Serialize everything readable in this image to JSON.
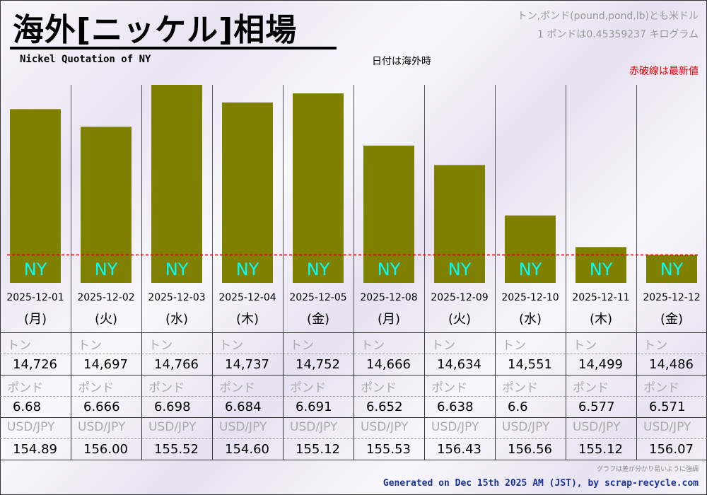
{
  "header": {
    "title": "海外[ニッケル]相場",
    "subtitle": "Nickel Quotation of NY",
    "date_note": "日付は海外時",
    "unit_note_1": "トン,ポンド(pound,pond,lb)とも米ドル",
    "unit_note_2": "1 ポンドは0.45359237 キログラム",
    "red_note": "赤破線は最新値"
  },
  "table": {
    "labels": {
      "ton": "トン",
      "pound": "ポンド",
      "usdjpy": "USD/JPY"
    },
    "ton": [
      "14,726",
      "14,697",
      "14,766",
      "14,737",
      "14,752",
      "14,666",
      "14,634",
      "14,551",
      "14,499",
      "14,486"
    ],
    "pound": [
      "6.68",
      "6.666",
      "6.698",
      "6.684",
      "6.691",
      "6.652",
      "6.638",
      "6.6",
      "6.577",
      "6.571"
    ],
    "usdjpy": [
      "154.89",
      "156.00",
      "155.52",
      "154.60",
      "155.12",
      "155.53",
      "156.43",
      "156.56",
      "155.12",
      "156.07"
    ]
  },
  "chart_data": {
    "type": "bar",
    "title": "海外[ニッケル]相場",
    "subtitle": "Nickel Quotation of NY",
    "categories": [
      "2025-12-01",
      "2025-12-02",
      "2025-12-03",
      "2025-12-04",
      "2025-12-05",
      "2025-12-08",
      "2025-12-09",
      "2025-12-10",
      "2025-12-11",
      "2025-12-12"
    ],
    "weekdays": [
      "(月)",
      "(火)",
      "(水)",
      "(木)",
      "(金)",
      "(月)",
      "(火)",
      "(水)",
      "(木)",
      "(金)"
    ],
    "bar_label": "NY",
    "series": [
      {
        "name": "NY トン (USD)",
        "values": [
          14726,
          14697,
          14766,
          14737,
          14752,
          14666,
          14634,
          14551,
          14499,
          14486
        ]
      }
    ],
    "ylim": [
      14440,
      14766
    ],
    "reference_line": {
      "value": 14486,
      "label": "赤破線は最新値"
    },
    "colors": {
      "bar": "#808000",
      "bar_label": "#00ffff",
      "reference": "#cc0000"
    }
  },
  "footer": {
    "note": "グラフは差が分かり易いように強調",
    "generated": "Generated on Dec 15th 2025 AM (JST), by scrap-recycle.com"
  }
}
